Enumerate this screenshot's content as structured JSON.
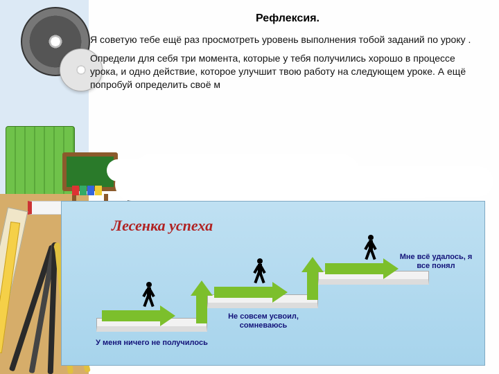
{
  "title": "Рефлексия.",
  "paragraph1": "Я советую тебе ещё раз просмотреть уровень выполнения тобой заданий по уроку .",
  "paragraph2": "Определи для себя  три момента, которые у тебя получились хорошо в процессе урока, и  одно действие, которое улучшит твою работу на следующем уроке. А ещё попробуй определить  своё м",
  "ladder": {
    "title": "Лесенка успеха",
    "background_gradient": [
      "#bfe0f2",
      "#a7d4ec"
    ],
    "title_color": "#b02222",
    "caption_color": "#14147a",
    "arrow_color": "#7cbf2c",
    "step_fill": "#f2f2f2",
    "steps": [
      {
        "level": 1,
        "caption": "У меня ничего не получилось"
      },
      {
        "level": 2,
        "caption": "Не совсем усвоил, сомневаюсь"
      },
      {
        "level": 3,
        "caption": "Мне всё удалось, я все понял"
      }
    ]
  },
  "decor": {
    "strip_color": "#dce9f5",
    "desk_color": "#d6ad6a",
    "chalkboard_color": "#2a7a2a",
    "chalkboard_frame": "#8b5a2b"
  }
}
